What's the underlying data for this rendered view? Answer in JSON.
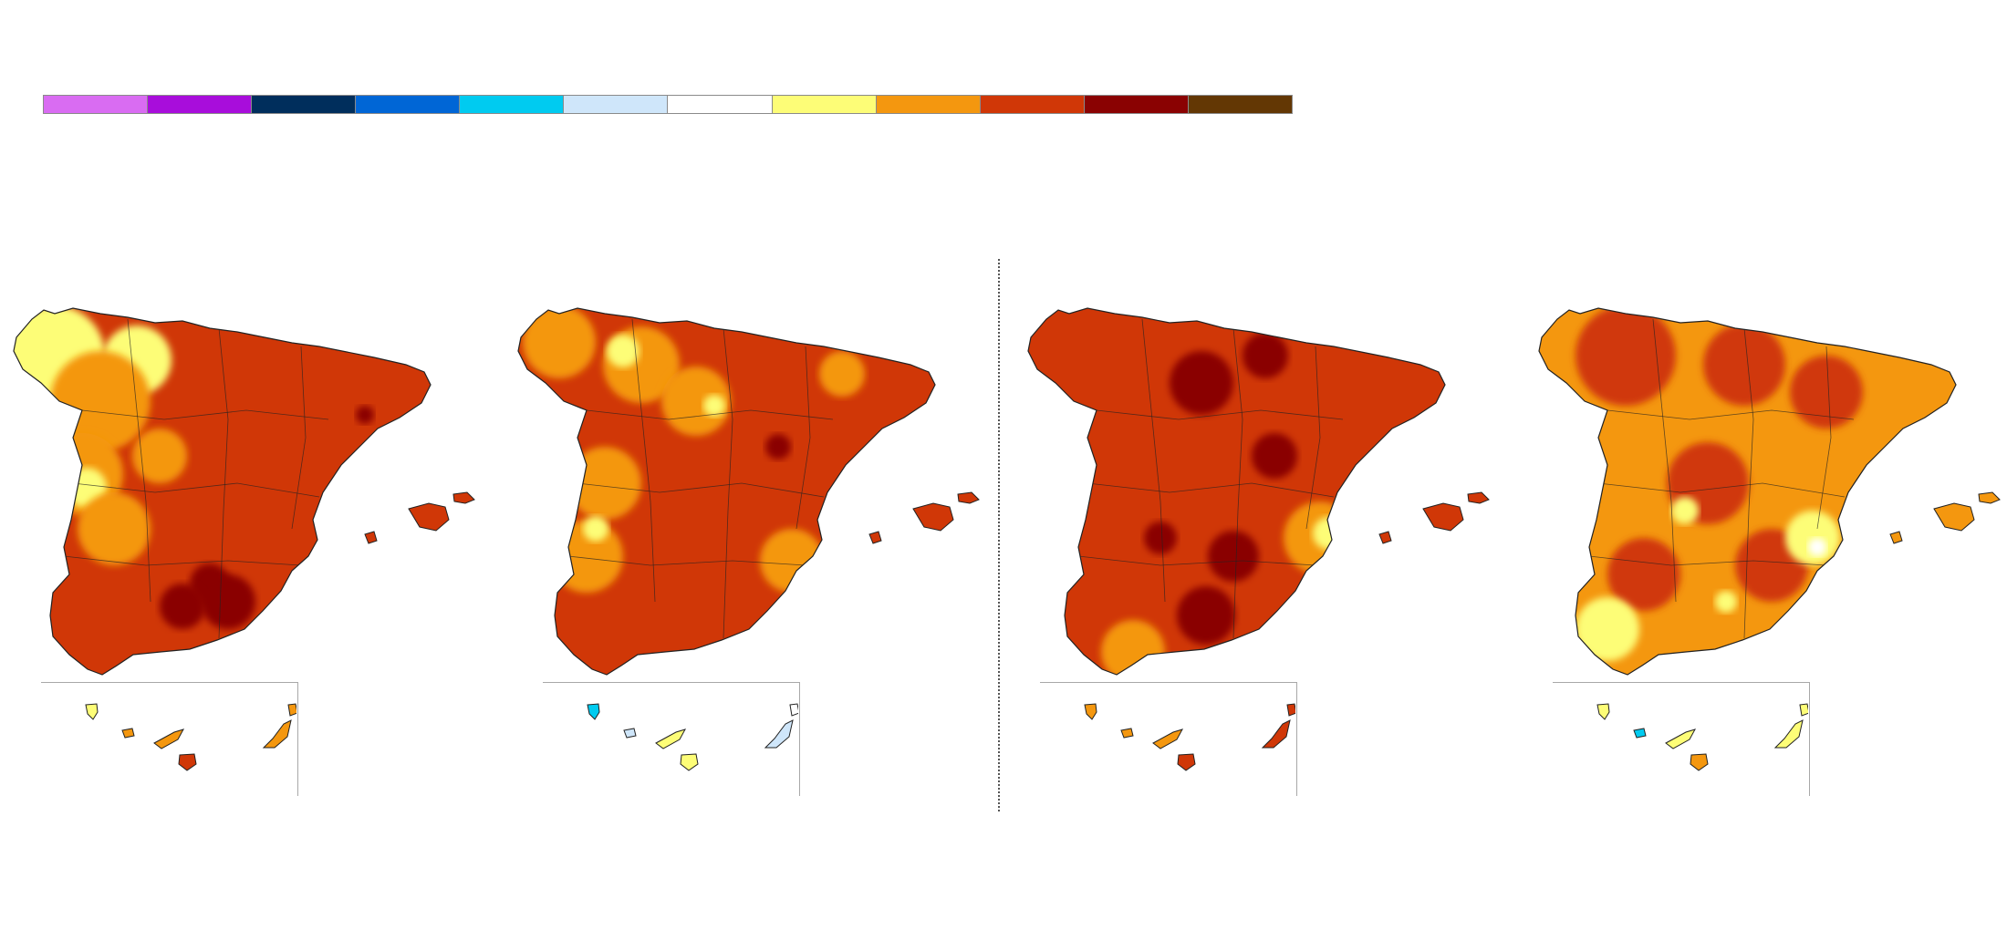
{
  "legend": {
    "colors": [
      "#d96cf2",
      "#a80ddb",
      "#002e5c",
      "#0066d6",
      "#00cbf0",
      "#cfe6fa",
      "#ffffff",
      "#fdfd77",
      "#f4970f",
      "#d03707",
      "#8a0202",
      "#633704"
    ]
  },
  "maps": [
    {
      "base_color": "#d03707",
      "patches": [
        {
          "c": "#fdfd77",
          "x": 60,
          "y": 60,
          "r": 55
        },
        {
          "c": "#fdfd77",
          "x": 150,
          "y": 65,
          "r": 38
        },
        {
          "c": "#f4970f",
          "x": 110,
          "y": 110,
          "r": 55
        },
        {
          "c": "#f4970f",
          "x": 90,
          "y": 190,
          "r": 45
        },
        {
          "c": "#fdfd77",
          "x": 95,
          "y": 205,
          "r": 22
        },
        {
          "c": "#f4970f",
          "x": 125,
          "y": 250,
          "r": 40
        },
        {
          "c": "#f4970f",
          "x": 175,
          "y": 170,
          "r": 30
        },
        {
          "c": "#8a0202",
          "x": 230,
          "y": 310,
          "r": 22
        },
        {
          "c": "#8a0202",
          "x": 250,
          "y": 330,
          "r": 30
        },
        {
          "c": "#8a0202",
          "x": 200,
          "y": 335,
          "r": 25
        },
        {
          "c": "#8a0202",
          "x": 400,
          "y": 125,
          "r": 10
        }
      ],
      "islands": [
        {
          "c": "#fdfd77",
          "x": 55,
          "y": 30
        },
        {
          "c": "#f4970f",
          "x": 95,
          "y": 55
        },
        {
          "c": "#f4970f",
          "x": 140,
          "y": 60
        },
        {
          "c": "#d03707",
          "x": 160,
          "y": 85
        },
        {
          "c": "#f4970f",
          "x": 260,
          "y": 55
        },
        {
          "c": "#f4970f",
          "x": 275,
          "y": 30
        }
      ]
    },
    {
      "base_color": "#d03707",
      "patches": [
        {
          "c": "#f4970f",
          "x": 60,
          "y": 45,
          "r": 40
        },
        {
          "c": "#f4970f",
          "x": 150,
          "y": 70,
          "r": 42
        },
        {
          "c": "#fdfd77",
          "x": 130,
          "y": 55,
          "r": 18
        },
        {
          "c": "#f4970f",
          "x": 210,
          "y": 110,
          "r": 38
        },
        {
          "c": "#fdfd77",
          "x": 230,
          "y": 115,
          "r": 12
        },
        {
          "c": "#f4970f",
          "x": 110,
          "y": 200,
          "r": 40
        },
        {
          "c": "#f4970f",
          "x": 90,
          "y": 280,
          "r": 40
        },
        {
          "c": "#fdfd77",
          "x": 100,
          "y": 250,
          "r": 14
        },
        {
          "c": "#f4970f",
          "x": 315,
          "y": 285,
          "r": 35
        },
        {
          "c": "#f4970f",
          "x": 370,
          "y": 80,
          "r": 25
        },
        {
          "c": "#8a0202",
          "x": 300,
          "y": 160,
          "r": 14
        }
      ],
      "islands": [
        {
          "c": "#00cbf0",
          "x": 55,
          "y": 30
        },
        {
          "c": "#cfe6fa",
          "x": 95,
          "y": 55
        },
        {
          "c": "#fdfd77",
          "x": 140,
          "y": 60
        },
        {
          "c": "#fdfd77",
          "x": 160,
          "y": 85
        },
        {
          "c": "#cfe6fa",
          "x": 260,
          "y": 55
        },
        {
          "c": "#ffffff",
          "x": 275,
          "y": 30
        }
      ]
    },
    {
      "base_color": "#d03707",
      "patches": [
        {
          "c": "#8a0202",
          "x": 205,
          "y": 90,
          "r": 35
        },
        {
          "c": "#8a0202",
          "x": 275,
          "y": 60,
          "r": 25
        },
        {
          "c": "#8a0202",
          "x": 285,
          "y": 170,
          "r": 25
        },
        {
          "c": "#8a0202",
          "x": 240,
          "y": 280,
          "r": 28
        },
        {
          "c": "#8a0202",
          "x": 210,
          "y": 345,
          "r": 32
        },
        {
          "c": "#8a0202",
          "x": 160,
          "y": 260,
          "r": 18
        },
        {
          "c": "#f4970f",
          "x": 335,
          "y": 260,
          "r": 40
        },
        {
          "c": "#fdfd77",
          "x": 345,
          "y": 255,
          "r": 18
        },
        {
          "c": "#f4970f",
          "x": 130,
          "y": 385,
          "r": 35
        }
      ],
      "islands": [
        {
          "c": "#f4970f",
          "x": 55,
          "y": 30
        },
        {
          "c": "#f4970f",
          "x": 95,
          "y": 55
        },
        {
          "c": "#f4970f",
          "x": 140,
          "y": 60
        },
        {
          "c": "#d03707",
          "x": 160,
          "y": 85
        },
        {
          "c": "#d03707",
          "x": 260,
          "y": 55
        },
        {
          "c": "#d03707",
          "x": 275,
          "y": 30
        }
      ]
    },
    {
      "base_color": "#f4970f",
      "patches": [
        {
          "c": "#d03707",
          "x": 110,
          "y": 60,
          "r": 55
        },
        {
          "c": "#d03707",
          "x": 240,
          "y": 70,
          "r": 45
        },
        {
          "c": "#d03707",
          "x": 330,
          "y": 100,
          "r": 40
        },
        {
          "c": "#d03707",
          "x": 200,
          "y": 200,
          "r": 45
        },
        {
          "c": "#d03707",
          "x": 270,
          "y": 290,
          "r": 40
        },
        {
          "c": "#d03707",
          "x": 130,
          "y": 300,
          "r": 40
        },
        {
          "c": "#fdfd77",
          "x": 90,
          "y": 360,
          "r": 35
        },
        {
          "c": "#fdfd77",
          "x": 315,
          "y": 260,
          "r": 30
        },
        {
          "c": "#ffffff",
          "x": 320,
          "y": 270,
          "r": 10
        },
        {
          "c": "#fdfd77",
          "x": 175,
          "y": 230,
          "r": 15
        },
        {
          "c": "#fdfd77",
          "x": 220,
          "y": 330,
          "r": 12
        }
      ],
      "islands": [
        {
          "c": "#fdfd77",
          "x": 55,
          "y": 30
        },
        {
          "c": "#00cbf0",
          "x": 95,
          "y": 55
        },
        {
          "c": "#fdfd77",
          "x": 140,
          "y": 60
        },
        {
          "c": "#f4970f",
          "x": 160,
          "y": 85
        },
        {
          "c": "#fdfd77",
          "x": 260,
          "y": 55
        },
        {
          "c": "#fdfd77",
          "x": 275,
          "y": 30
        }
      ]
    }
  ]
}
